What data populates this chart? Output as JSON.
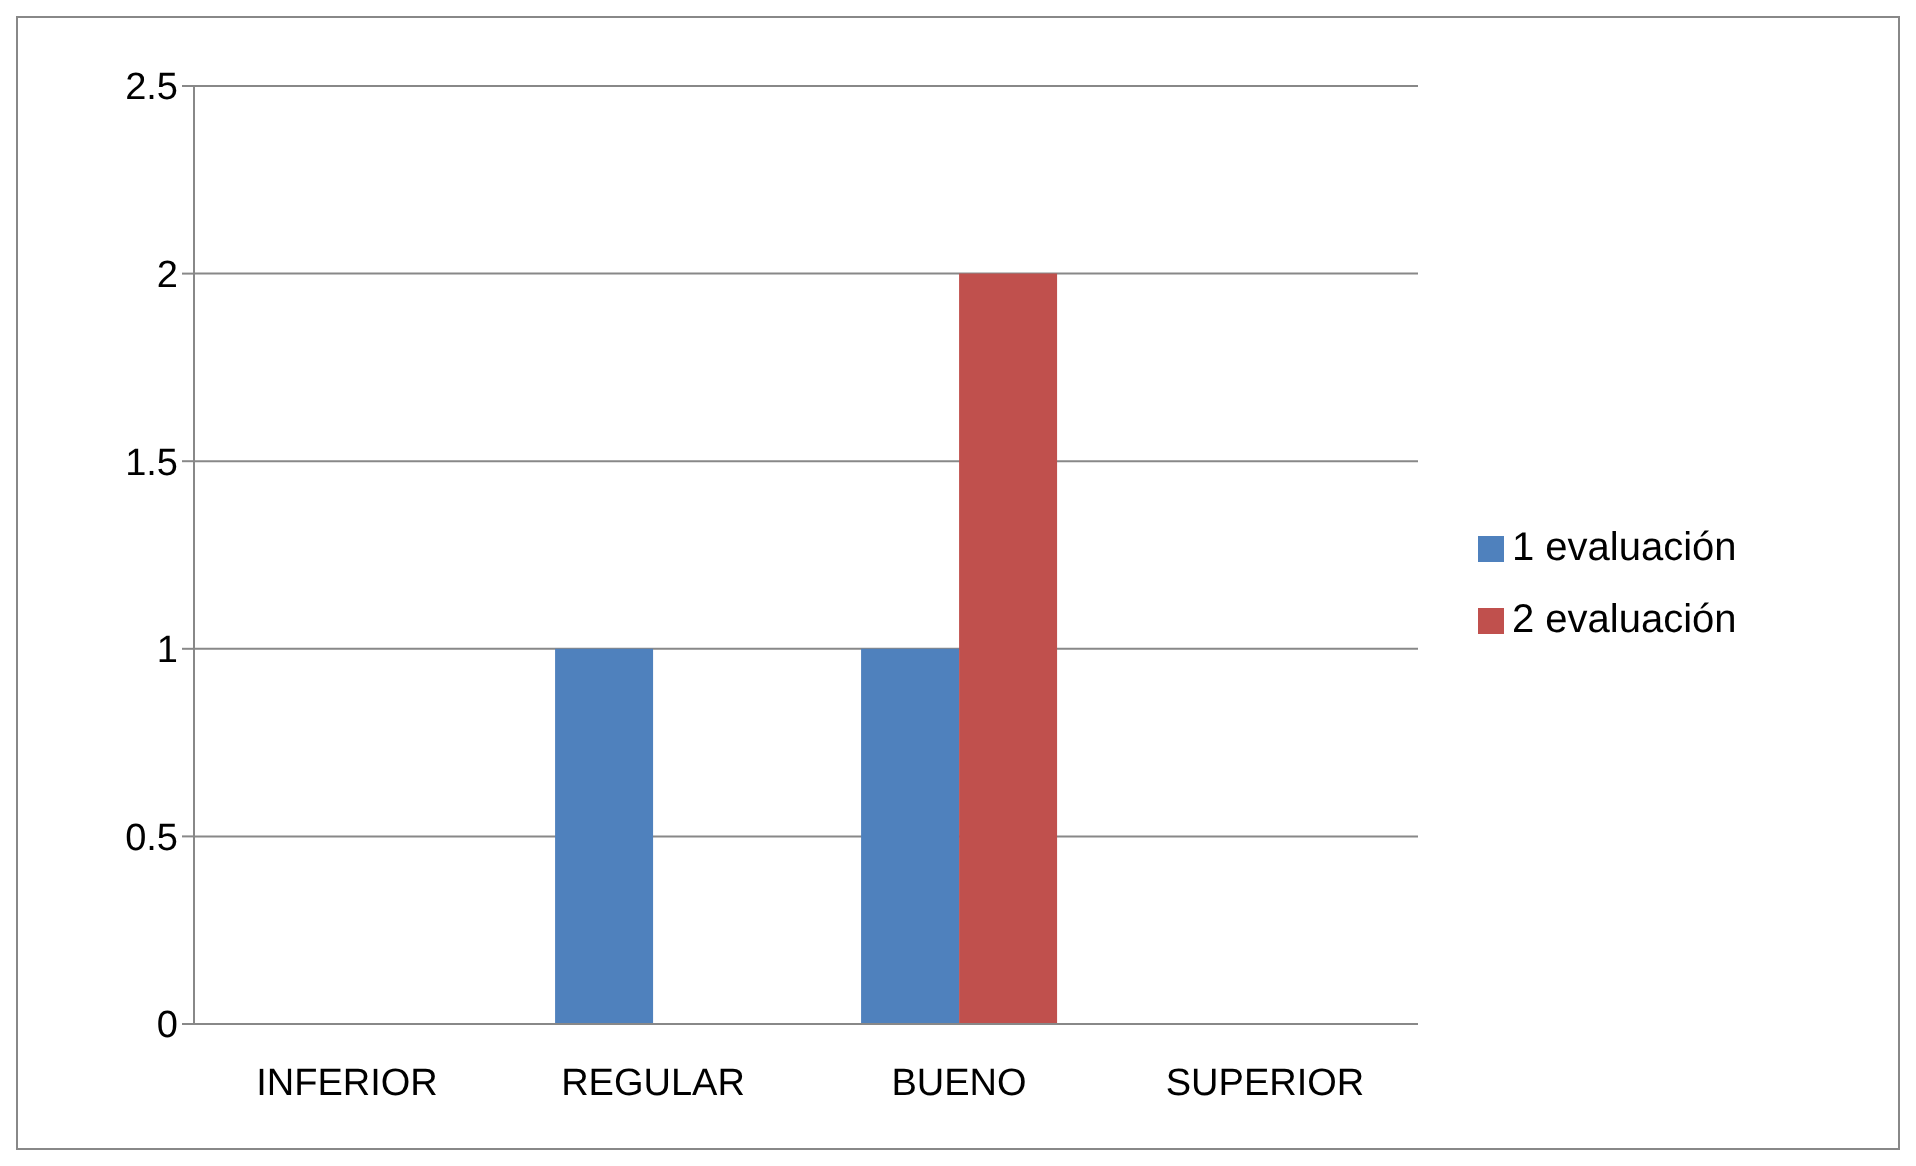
{
  "chart_data": {
    "type": "bar",
    "categories": [
      "INFERIOR",
      "REGULAR",
      "BUENO",
      "SUPERIOR"
    ],
    "series": [
      {
        "name": "1 evaluación",
        "color": "#4f81bd",
        "values": [
          0,
          1,
          1,
          0
        ]
      },
      {
        "name": "2 evaluación",
        "color": "#c0504d",
        "values": [
          0,
          0,
          2,
          0
        ]
      }
    ],
    "ylim": [
      0,
      2.5
    ],
    "yticks": [
      0,
      0.5,
      1,
      1.5,
      2,
      2.5
    ],
    "grid": "y",
    "legend": "right"
  }
}
